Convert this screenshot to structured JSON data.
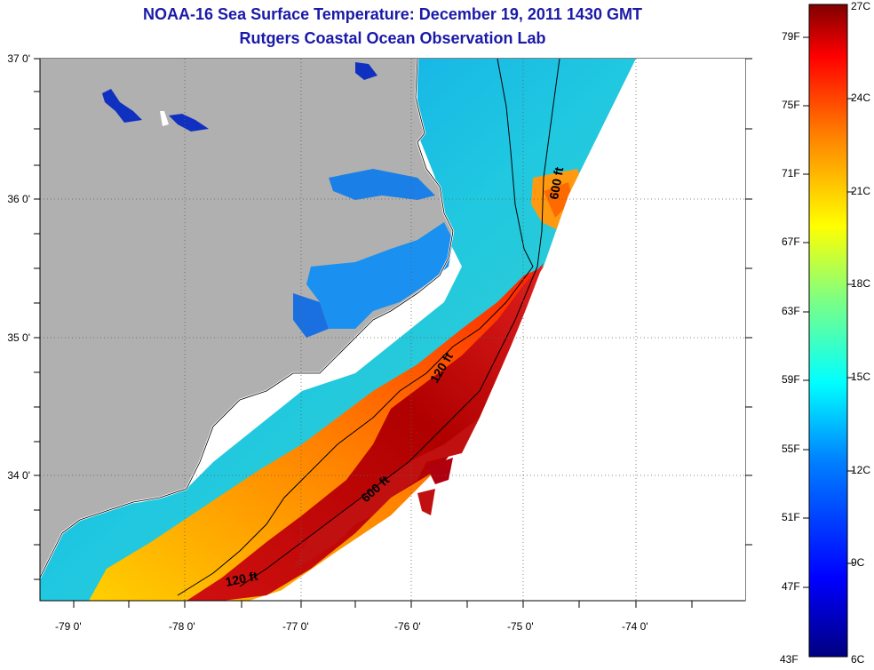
{
  "header": {
    "title": "NOAA-16 Sea Surface Temperature:  December 19, 2011 1430 GMT",
    "subtitle": "Rutgers Coastal Ocean Observation Lab"
  },
  "map": {
    "lat_labels": [
      "37 0'",
      "36 0'",
      "35 0'",
      "34 0'"
    ],
    "lon_labels": [
      "-79 0'",
      "-78 0'",
      "-77 0'",
      "-76 0'",
      "-75 0'",
      "-74 0'"
    ],
    "contours": [
      "600 ft",
      "120 ft",
      "600 ft",
      "120 ft"
    ]
  },
  "colorbar": {
    "f_labels": [
      "79F",
      "75F",
      "71F",
      "67F",
      "63F",
      "59F",
      "55F",
      "51F",
      "47F",
      "43F"
    ],
    "c_labels": [
      "27C",
      "24C",
      "21C",
      "18C",
      "15C",
      "12C",
      "9C",
      "6C"
    ],
    "colors": [
      "#000080",
      "#0000ff",
      "#0080ff",
      "#00ffff",
      "#80ff80",
      "#ffff00",
      "#ff8000",
      "#ff0000",
      "#800000"
    ]
  }
}
